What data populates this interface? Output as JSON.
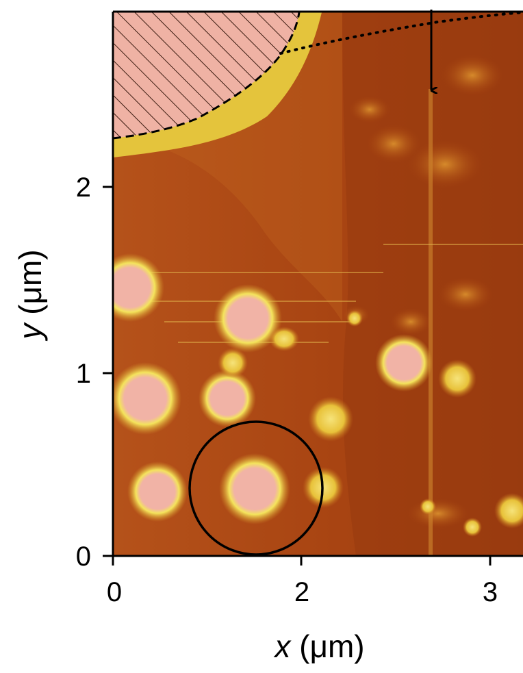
{
  "figure": {
    "colormap": [
      "#7a1e0a",
      "#a8430f",
      "#c9741c",
      "#e3c23a",
      "#f2e35a",
      "#f0b2a6"
    ],
    "overlay_color": "#000000",
    "hatch_fill": "#f0b2a6"
  },
  "axes": {
    "x": {
      "label_var": "x",
      "label_unit": " (μm)",
      "ticks": [
        "0",
        "2",
        "3"
      ]
    },
    "y": {
      "label_var": "y",
      "label_unit": " (μm)",
      "ticks": [
        "0",
        "1",
        "2"
      ]
    }
  }
}
